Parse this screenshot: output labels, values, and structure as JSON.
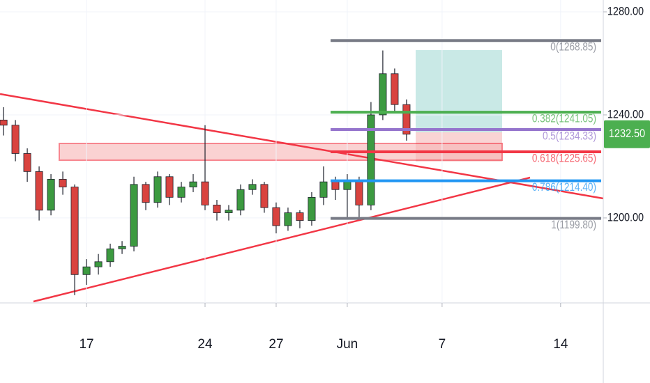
{
  "chart_data": {
    "type": "candlestick",
    "x": [
      -3.5,
      -3,
      -2.5,
      -2,
      -1.5,
      -1,
      -0.5,
      0,
      0.5,
      1,
      1.5,
      2,
      2.5,
      3,
      3.5,
      4,
      4.5,
      5,
      5.5,
      6,
      6.5,
      7,
      7.5,
      8,
      8.5,
      9,
      9.5,
      10,
      10.5,
      11,
      11.5,
      12,
      12.5,
      13,
      13.5
    ],
    "open": [
      1238,
      1236,
      1225,
      1218,
      1203,
      1215,
      1212,
      1178,
      1181,
      1183,
      1188,
      1189,
      1213,
      1206,
      1216,
      1208,
      1212,
      1214,
      1205,
      1202,
      1203,
      1211,
      1213,
      1204,
      1197,
      1202,
      1199,
      1208,
      1214,
      1211,
      1214,
      1205,
      1240,
      1256,
      1244
    ],
    "high": [
      1243,
      1238,
      1227,
      1220,
      1217,
      1218,
      1213,
      1184,
      1186,
      1190,
      1191,
      1216,
      1214,
      1218,
      1217,
      1214,
      1217,
      1236,
      1207,
      1205,
      1213,
      1215,
      1214,
      1206,
      1204,
      1203,
      1210,
      1220,
      1216,
      1217,
      1216,
      1245,
      1265,
      1258,
      1246
    ],
    "low": [
      1232,
      1222,
      1214,
      1199,
      1201,
      1209,
      1170,
      1174,
      1178,
      1181,
      1186,
      1187,
      1203,
      1204,
      1205,
      1206,
      1210,
      1203,
      1199,
      1199,
      1201,
      1209,
      1202,
      1194,
      1195,
      1196,
      1197,
      1205,
      1207,
      1200,
      1200,
      1203,
      1238,
      1241,
      1230
    ],
    "close": [
      1236,
      1225,
      1218,
      1203,
      1215,
      1212,
      1178,
      1181,
      1183,
      1188,
      1189,
      1213,
      1206,
      1216,
      1208,
      1212,
      1214,
      1205,
      1202,
      1203,
      1211,
      1213,
      1204,
      1197,
      1202,
      1199,
      1208,
      1214,
      1211,
      1214,
      1205,
      1240,
      1256,
      1244,
      1232.5
    ],
    "up_color": "#3c9a40",
    "down_color": "#d9433f",
    "xlim": [
      -3.65,
      21.8
    ],
    "ylim": [
      1167,
      1284.6
    ],
    "xticks": [
      {
        "value": 0,
        "label": "17"
      },
      {
        "value": 5,
        "label": "24"
      },
      {
        "value": 8,
        "label": "27"
      },
      {
        "value": 11,
        "label": "Jun"
      },
      {
        "value": 15,
        "label": "7"
      },
      {
        "value": 20,
        "label": "14"
      }
    ],
    "yticks": [
      {
        "value": 1200,
        "label": "1200.00"
      },
      {
        "value": 1240,
        "label": "1240.00"
      },
      {
        "value": 1280,
        "label": "1280.00"
      }
    ],
    "grid": true,
    "fib_levels": [
      {
        "value": 1268.85,
        "label": "0(1268.85)",
        "color": "#787b86"
      },
      {
        "value": 1241.05,
        "label": "0.382(1241.05)",
        "color": "#4caf50"
      },
      {
        "value": 1234.33,
        "label": "0.5(1234.33)",
        "color": "#9575cd"
      },
      {
        "value": 1225.65,
        "label": "0.618(1225.65)",
        "color": "#f23645"
      },
      {
        "value": 1214.4,
        "label": "0.786(1214.40)",
        "color": "#2196f3"
      },
      {
        "value": 1199.8,
        "label": "1(1199.80)",
        "color": "#787b86"
      }
    ],
    "last_price": {
      "value": 1232.5,
      "label": "1232.50",
      "color": "#4caf50"
    }
  }
}
